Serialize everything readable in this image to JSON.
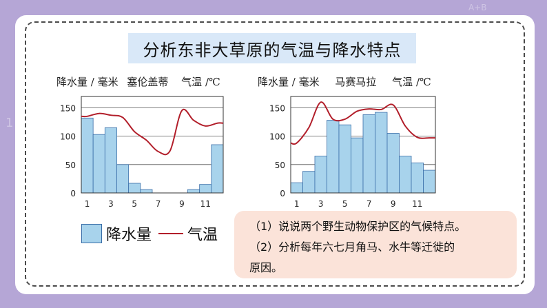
{
  "title": "分析东非大草原的气温与降水特点",
  "legend": {
    "precip_label": "降水量",
    "temp_label": "气温"
  },
  "questions": [
    "（1）说说两个野生动物保护区的气候特点。",
    "（2）分析每年六七月角马、水牛等迁徙的",
    "原因。"
  ],
  "colors": {
    "bar_fill": "#a8d3ec",
    "bar_stroke": "#3a6ea8",
    "temp_line": "#b21e2a"
  },
  "chart_data": [
    {
      "type": "bar+line",
      "station": "塞伦盖蒂",
      "left_label": "降水量 / 毫米",
      "right_label": "气温 /℃",
      "yticks": [
        0,
        50,
        100,
        150
      ],
      "ylim": [
        0,
        170
      ],
      "xticks": [
        "1",
        "3",
        "5",
        "7",
        "9",
        "11"
      ],
      "precip": [
        132,
        103,
        115,
        50,
        17,
        6,
        0,
        0,
        0,
        6,
        15,
        85
      ],
      "temp_line": [
        135,
        140,
        137,
        133,
        108,
        93,
        73,
        74,
        145,
        128,
        118,
        123
      ]
    },
    {
      "type": "bar+line",
      "station": "马赛马拉",
      "left_label": "降水量 / 毫米",
      "right_label": "气温 /℃",
      "yticks": [
        0,
        50,
        100,
        150
      ],
      "ylim": [
        0,
        170
      ],
      "xticks": [
        "1",
        "3",
        "5",
        "7",
        "9",
        "11"
      ],
      "precip": [
        18,
        38,
        65,
        128,
        120,
        97,
        138,
        142,
        105,
        65,
        53,
        40
      ],
      "temp_line": [
        88,
        115,
        160,
        130,
        130,
        144,
        148,
        147,
        155,
        118,
        98,
        97
      ]
    }
  ]
}
